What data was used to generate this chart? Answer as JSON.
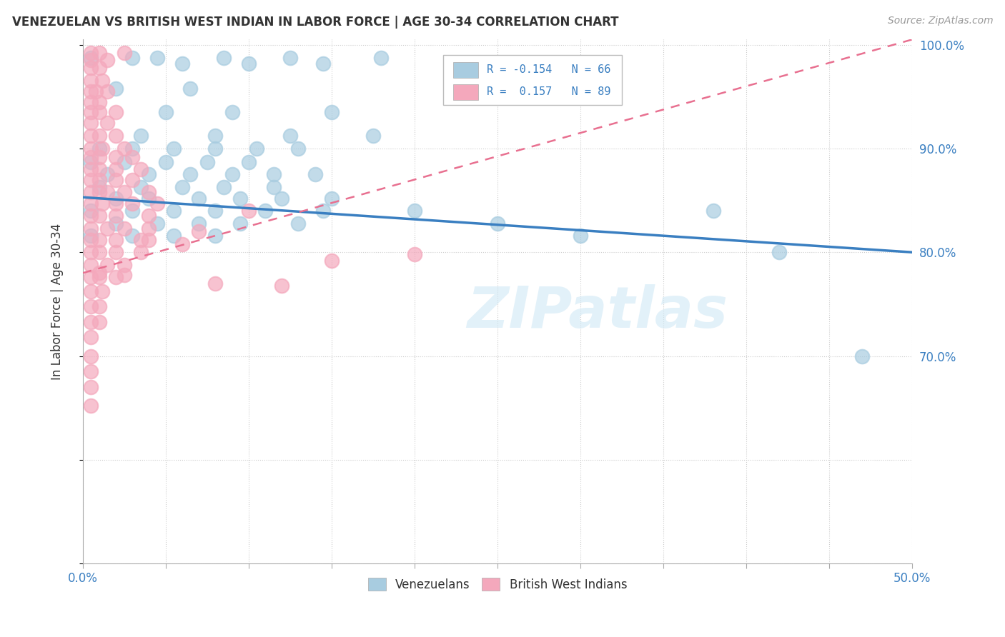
{
  "title": "VENEZUELAN VS BRITISH WEST INDIAN IN LABOR FORCE | AGE 30-34 CORRELATION CHART",
  "source": "Source: ZipAtlas.com",
  "ylabel_label": "In Labor Force | Age 30-34",
  "legend_blue_label": "Venezuelans",
  "legend_pink_label": "British West Indians",
  "xmin": 0.0,
  "xmax": 0.5,
  "ymin": 0.5,
  "ymax": 1.005,
  "blue_R": -0.154,
  "blue_N": 66,
  "pink_R": 0.157,
  "pink_N": 89,
  "blue_color": "#a8cce0",
  "pink_color": "#f4a8bc",
  "blue_trend_color": "#3a7fc1",
  "pink_trend_color": "#e87090",
  "watermark_text": "ZIPatlas",
  "yticks": [
    0.5,
    0.6,
    0.7,
    0.8,
    0.9,
    1.0
  ],
  "ytick_labels": [
    "",
    "",
    "70.0%",
    "80.0%",
    "90.0%",
    "100.0%"
  ],
  "xtick_labels_show": [
    "0.0%",
    "50.0%"
  ],
  "blue_trend_x0": 0.0,
  "blue_trend_y0": 0.853,
  "blue_trend_x1": 0.5,
  "blue_trend_y1": 0.8,
  "pink_trend_x0": 0.0,
  "pink_trend_y0": 0.78,
  "pink_trend_x1": 0.5,
  "pink_trend_y1": 1.005,
  "blue_scatter": [
    [
      0.005,
      0.987
    ],
    [
      0.03,
      0.987
    ],
    [
      0.045,
      0.987
    ],
    [
      0.085,
      0.987
    ],
    [
      0.125,
      0.987
    ],
    [
      0.18,
      0.987
    ],
    [
      0.06,
      0.982
    ],
    [
      0.1,
      0.982
    ],
    [
      0.145,
      0.982
    ],
    [
      0.02,
      0.958
    ],
    [
      0.065,
      0.958
    ],
    [
      0.05,
      0.935
    ],
    [
      0.09,
      0.935
    ],
    [
      0.15,
      0.935
    ],
    [
      0.035,
      0.912
    ],
    [
      0.08,
      0.912
    ],
    [
      0.125,
      0.912
    ],
    [
      0.175,
      0.912
    ],
    [
      0.01,
      0.9
    ],
    [
      0.03,
      0.9
    ],
    [
      0.055,
      0.9
    ],
    [
      0.08,
      0.9
    ],
    [
      0.105,
      0.9
    ],
    [
      0.13,
      0.9
    ],
    [
      0.005,
      0.887
    ],
    [
      0.025,
      0.887
    ],
    [
      0.05,
      0.887
    ],
    [
      0.075,
      0.887
    ],
    [
      0.1,
      0.887
    ],
    [
      0.015,
      0.875
    ],
    [
      0.04,
      0.875
    ],
    [
      0.065,
      0.875
    ],
    [
      0.09,
      0.875
    ],
    [
      0.115,
      0.875
    ],
    [
      0.14,
      0.875
    ],
    [
      0.01,
      0.863
    ],
    [
      0.035,
      0.863
    ],
    [
      0.06,
      0.863
    ],
    [
      0.085,
      0.863
    ],
    [
      0.115,
      0.863
    ],
    [
      0.02,
      0.852
    ],
    [
      0.04,
      0.852
    ],
    [
      0.07,
      0.852
    ],
    [
      0.095,
      0.852
    ],
    [
      0.12,
      0.852
    ],
    [
      0.15,
      0.852
    ],
    [
      0.005,
      0.84
    ],
    [
      0.03,
      0.84
    ],
    [
      0.055,
      0.84
    ],
    [
      0.08,
      0.84
    ],
    [
      0.11,
      0.84
    ],
    [
      0.145,
      0.84
    ],
    [
      0.02,
      0.828
    ],
    [
      0.045,
      0.828
    ],
    [
      0.07,
      0.828
    ],
    [
      0.095,
      0.828
    ],
    [
      0.13,
      0.828
    ],
    [
      0.005,
      0.816
    ],
    [
      0.03,
      0.816
    ],
    [
      0.055,
      0.816
    ],
    [
      0.08,
      0.816
    ],
    [
      0.2,
      0.84
    ],
    [
      0.25,
      0.828
    ],
    [
      0.3,
      0.816
    ],
    [
      0.38,
      0.84
    ],
    [
      0.42,
      0.8
    ],
    [
      0.47,
      0.7
    ]
  ],
  "pink_scatter": [
    [
      0.005,
      0.992
    ],
    [
      0.01,
      0.992
    ],
    [
      0.025,
      0.992
    ],
    [
      0.005,
      0.985
    ],
    [
      0.015,
      0.985
    ],
    [
      0.005,
      0.978
    ],
    [
      0.01,
      0.978
    ],
    [
      0.005,
      0.965
    ],
    [
      0.012,
      0.965
    ],
    [
      0.005,
      0.955
    ],
    [
      0.008,
      0.955
    ],
    [
      0.015,
      0.955
    ],
    [
      0.005,
      0.945
    ],
    [
      0.01,
      0.945
    ],
    [
      0.005,
      0.935
    ],
    [
      0.01,
      0.935
    ],
    [
      0.02,
      0.935
    ],
    [
      0.005,
      0.925
    ],
    [
      0.015,
      0.925
    ],
    [
      0.005,
      0.912
    ],
    [
      0.01,
      0.912
    ],
    [
      0.02,
      0.912
    ],
    [
      0.005,
      0.9
    ],
    [
      0.012,
      0.9
    ],
    [
      0.025,
      0.9
    ],
    [
      0.005,
      0.892
    ],
    [
      0.01,
      0.892
    ],
    [
      0.02,
      0.892
    ],
    [
      0.03,
      0.892
    ],
    [
      0.005,
      0.88
    ],
    [
      0.01,
      0.88
    ],
    [
      0.02,
      0.88
    ],
    [
      0.035,
      0.88
    ],
    [
      0.005,
      0.87
    ],
    [
      0.01,
      0.87
    ],
    [
      0.02,
      0.87
    ],
    [
      0.03,
      0.87
    ],
    [
      0.005,
      0.858
    ],
    [
      0.01,
      0.858
    ],
    [
      0.015,
      0.858
    ],
    [
      0.025,
      0.858
    ],
    [
      0.04,
      0.858
    ],
    [
      0.005,
      0.847
    ],
    [
      0.012,
      0.847
    ],
    [
      0.02,
      0.847
    ],
    [
      0.03,
      0.847
    ],
    [
      0.045,
      0.847
    ],
    [
      0.005,
      0.835
    ],
    [
      0.01,
      0.835
    ],
    [
      0.02,
      0.835
    ],
    [
      0.04,
      0.835
    ],
    [
      0.005,
      0.823
    ],
    [
      0.015,
      0.823
    ],
    [
      0.025,
      0.823
    ],
    [
      0.04,
      0.823
    ],
    [
      0.005,
      0.812
    ],
    [
      0.01,
      0.812
    ],
    [
      0.02,
      0.812
    ],
    [
      0.035,
      0.812
    ],
    [
      0.005,
      0.8
    ],
    [
      0.01,
      0.8
    ],
    [
      0.02,
      0.8
    ],
    [
      0.035,
      0.8
    ],
    [
      0.005,
      0.788
    ],
    [
      0.015,
      0.788
    ],
    [
      0.025,
      0.788
    ],
    [
      0.005,
      0.776
    ],
    [
      0.01,
      0.776
    ],
    [
      0.02,
      0.776
    ],
    [
      0.005,
      0.762
    ],
    [
      0.012,
      0.762
    ],
    [
      0.005,
      0.748
    ],
    [
      0.01,
      0.748
    ],
    [
      0.005,
      0.733
    ],
    [
      0.01,
      0.733
    ],
    [
      0.005,
      0.718
    ],
    [
      0.005,
      0.7
    ],
    [
      0.005,
      0.685
    ],
    [
      0.005,
      0.67
    ],
    [
      0.005,
      0.652
    ],
    [
      0.01,
      0.78
    ],
    [
      0.025,
      0.778
    ],
    [
      0.04,
      0.812
    ],
    [
      0.06,
      0.808
    ],
    [
      0.07,
      0.82
    ],
    [
      0.1,
      0.84
    ],
    [
      0.08,
      0.77
    ],
    [
      0.12,
      0.768
    ],
    [
      0.15,
      0.792
    ],
    [
      0.2,
      0.798
    ]
  ]
}
